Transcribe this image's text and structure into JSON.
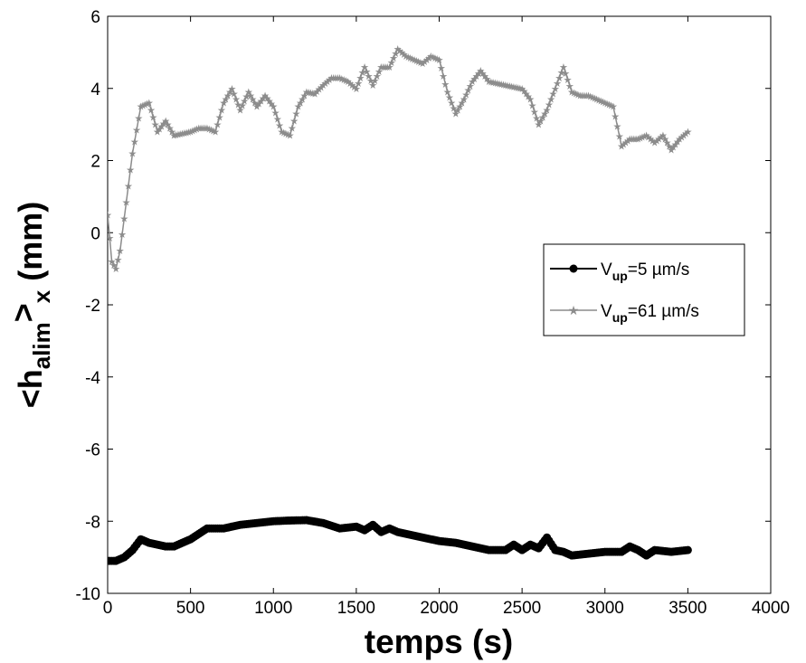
{
  "chart_data": {
    "type": "line",
    "title": "",
    "xlabel": "temps (s)",
    "ylabel": {
      "main": "<h",
      "sub": "alim",
      "close": ">",
      "sub2": "x",
      "unit": " (mm)"
    },
    "xlim": [
      0,
      4000
    ],
    "ylim": [
      -10,
      6
    ],
    "xticks": [
      "0",
      "500",
      "1000",
      "1500",
      "2000",
      "2500",
      "3000",
      "3500",
      "4000"
    ],
    "yticks": [
      "6",
      "4",
      "2",
      "0",
      "-2",
      "-4",
      "-6",
      "-8",
      "-10"
    ],
    "grid": false,
    "legend_position": "right",
    "series": [
      {
        "name": {
          "pre": "V",
          "sub": "up",
          "post": "=5 µm/s"
        },
        "color": "#000000",
        "marker": "dot",
        "x": [
          0,
          50,
          100,
          150,
          200,
          250,
          300,
          350,
          400,
          450,
          500,
          550,
          600,
          700,
          800,
          900,
          1000,
          1100,
          1200,
          1300,
          1400,
          1500,
          1550,
          1600,
          1650,
          1700,
          1750,
          1800,
          1900,
          2000,
          2100,
          2200,
          2300,
          2400,
          2450,
          2500,
          2550,
          2600,
          2650,
          2700,
          2750,
          2800,
          2900,
          3000,
          3100,
          3150,
          3200,
          3250,
          3300,
          3400,
          3500
        ],
        "y": [
          -9.1,
          -9.1,
          -9.0,
          -8.8,
          -8.5,
          -8.6,
          -8.65,
          -8.7,
          -8.7,
          -8.6,
          -8.5,
          -8.35,
          -8.2,
          -8.2,
          -8.1,
          -8.05,
          -8.0,
          -7.98,
          -7.97,
          -8.05,
          -8.2,
          -8.15,
          -8.25,
          -8.1,
          -8.3,
          -8.2,
          -8.3,
          -8.35,
          -8.45,
          -8.55,
          -8.6,
          -8.7,
          -8.8,
          -8.8,
          -8.65,
          -8.8,
          -8.65,
          -8.75,
          -8.45,
          -8.8,
          -8.85,
          -8.95,
          -8.9,
          -8.85,
          -8.85,
          -8.7,
          -8.8,
          -8.95,
          -8.8,
          -8.85,
          -8.8
        ]
      },
      {
        "name": {
          "pre": "V",
          "sub": "up",
          "post": "=61 µm/s"
        },
        "color": "#8c8c8c",
        "marker": "star",
        "x": [
          0,
          25,
          50,
          75,
          100,
          150,
          200,
          250,
          300,
          350,
          400,
          450,
          500,
          550,
          600,
          650,
          700,
          750,
          800,
          850,
          900,
          950,
          1000,
          1050,
          1100,
          1150,
          1200,
          1250,
          1300,
          1350,
          1400,
          1450,
          1500,
          1550,
          1600,
          1650,
          1700,
          1750,
          1800,
          1850,
          1900,
          1950,
          2000,
          2050,
          2100,
          2150,
          2200,
          2250,
          2300,
          2400,
          2500,
          2550,
          2600,
          2650,
          2700,
          2750,
          2800,
          2850,
          2900,
          2950,
          3000,
          3050,
          3100,
          3150,
          3200,
          3250,
          3300,
          3350,
          3400,
          3450,
          3500
        ],
        "y": [
          0.5,
          -0.8,
          -1.0,
          -0.5,
          0.4,
          2.2,
          3.5,
          3.6,
          2.8,
          3.1,
          2.7,
          2.75,
          2.8,
          2.9,
          2.9,
          2.8,
          3.6,
          4.0,
          3.4,
          3.9,
          3.5,
          3.8,
          3.5,
          2.8,
          2.7,
          3.5,
          3.9,
          3.85,
          4.1,
          4.3,
          4.3,
          4.2,
          4.0,
          4.6,
          4.1,
          4.6,
          4.6,
          5.1,
          4.9,
          4.8,
          4.7,
          4.9,
          4.8,
          3.9,
          3.3,
          3.7,
          4.2,
          4.5,
          4.2,
          4.1,
          4.0,
          3.7,
          3.0,
          3.4,
          4.0,
          4.6,
          3.9,
          3.8,
          3.8,
          3.7,
          3.6,
          3.5,
          2.4,
          2.6,
          2.6,
          2.7,
          2.5,
          2.7,
          2.3,
          2.6,
          2.8
        ]
      }
    ]
  }
}
